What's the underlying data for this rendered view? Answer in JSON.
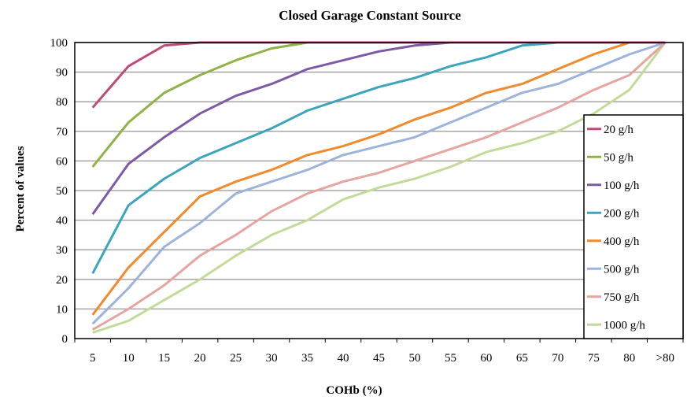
{
  "chart_data": {
    "type": "line",
    "title": "Closed Garage Constant Source",
    "xlabel": "COHb (%)",
    "ylabel": "Percent of values",
    "categories": [
      "5",
      "10",
      "15",
      "20",
      "25",
      "30",
      "35",
      "40",
      "45",
      "50",
      "55",
      "60",
      "65",
      "70",
      "75",
      "80",
      ">80"
    ],
    "ylim": [
      0,
      100
    ],
    "yticks": [
      0,
      10,
      20,
      30,
      40,
      50,
      60,
      70,
      80,
      90,
      100
    ],
    "grid": true,
    "legend_position": "right",
    "series": [
      {
        "name": "20 g/h",
        "color": "#be4b78",
        "values": [
          78,
          92,
          99,
          100,
          100,
          100,
          100,
          100,
          100,
          100,
          100,
          100,
          100,
          100,
          100,
          100,
          100
        ]
      },
      {
        "name": "50 g/h",
        "color": "#8fb347",
        "values": [
          58,
          73,
          83,
          89,
          94,
          98,
          100,
          100,
          100,
          100,
          100,
          100,
          100,
          100,
          100,
          100,
          100
        ]
      },
      {
        "name": "100 g/h",
        "color": "#7c5aa6",
        "values": [
          42,
          59,
          68,
          76,
          82,
          86,
          91,
          94,
          97,
          99,
          100,
          100,
          100,
          100,
          100,
          100,
          100
        ]
      },
      {
        "name": "200 g/h",
        "color": "#3ca4bd",
        "values": [
          22,
          45,
          54,
          61,
          66,
          71,
          77,
          81,
          85,
          88,
          92,
          95,
          99,
          100,
          100,
          100,
          100
        ]
      },
      {
        "name": "400 g/h",
        "color": "#f08a2c",
        "values": [
          8,
          24,
          36,
          48,
          53,
          57,
          62,
          65,
          69,
          74,
          78,
          83,
          86,
          91,
          96,
          100,
          100
        ]
      },
      {
        "name": "500 g/h",
        "color": "#9cb4dc",
        "values": [
          5,
          17,
          31,
          39,
          49,
          53,
          57,
          62,
          65,
          68,
          73,
          78,
          83,
          86,
          91,
          96,
          100
        ]
      },
      {
        "name": "750 g/h",
        "color": "#e8a4a0",
        "values": [
          3,
          10,
          18,
          28,
          35,
          43,
          49,
          53,
          56,
          60,
          64,
          68,
          73,
          78,
          84,
          89,
          100
        ]
      },
      {
        "name": "1000 g/h",
        "color": "#c2db98",
        "values": [
          2,
          6,
          13,
          20,
          28,
          35,
          40,
          47,
          51,
          54,
          58,
          63,
          66,
          70,
          76,
          84,
          100
        ]
      }
    ]
  }
}
